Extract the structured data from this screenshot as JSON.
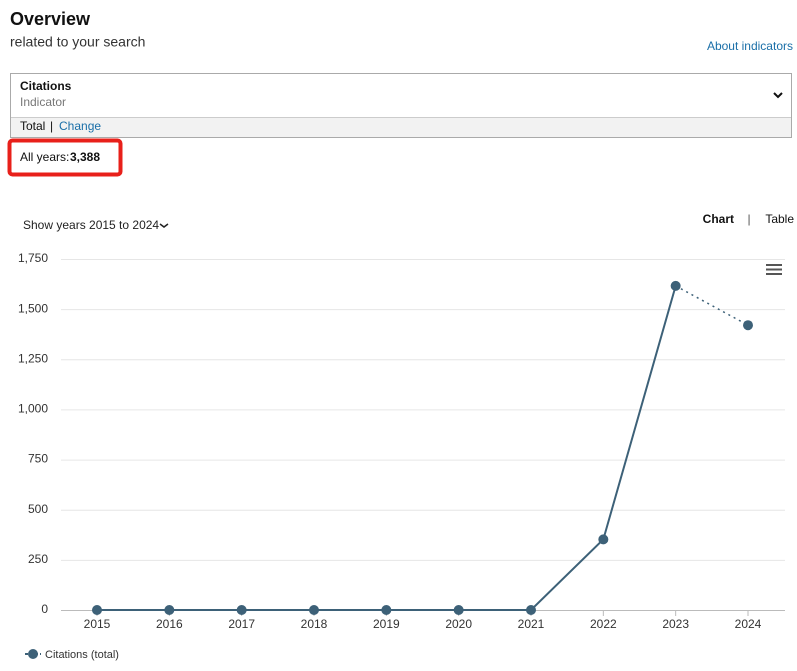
{
  "header": {
    "title": "Overview",
    "subtitle": "related to your search",
    "link": "About indicators"
  },
  "indicator": {
    "name": "Citations",
    "type": "Indicator",
    "mode": "Total",
    "separator": "|",
    "change": "Change"
  },
  "summary": {
    "label": "All years:",
    "value": "3,388"
  },
  "controls": {
    "year_range": "Show years 2015 to 2024",
    "chart": "Chart",
    "separator": "|",
    "table": "Table"
  },
  "chart_data": {
    "type": "line",
    "categories": [
      "2015",
      "2016",
      "2017",
      "2018",
      "2019",
      "2020",
      "2021",
      "2022",
      "2023",
      "2024"
    ],
    "series": [
      {
        "name": "Citations (total)",
        "color": "#3d6178",
        "values": [
          0,
          0,
          0,
          0,
          0,
          0,
          0,
          352,
          1616,
          1420
        ]
      }
    ],
    "ylim": [
      0,
      1750
    ],
    "yticks": [
      0,
      250,
      500,
      750,
      {
        "value": 1000,
        "label": "1,000"
      },
      {
        "value": 1250,
        "label": "1,250"
      },
      {
        "value": 1500,
        "label": "1,500"
      },
      {
        "value": 1750,
        "label": "1,750"
      }
    ],
    "grid": true,
    "dotted_last_segment": true
  }
}
